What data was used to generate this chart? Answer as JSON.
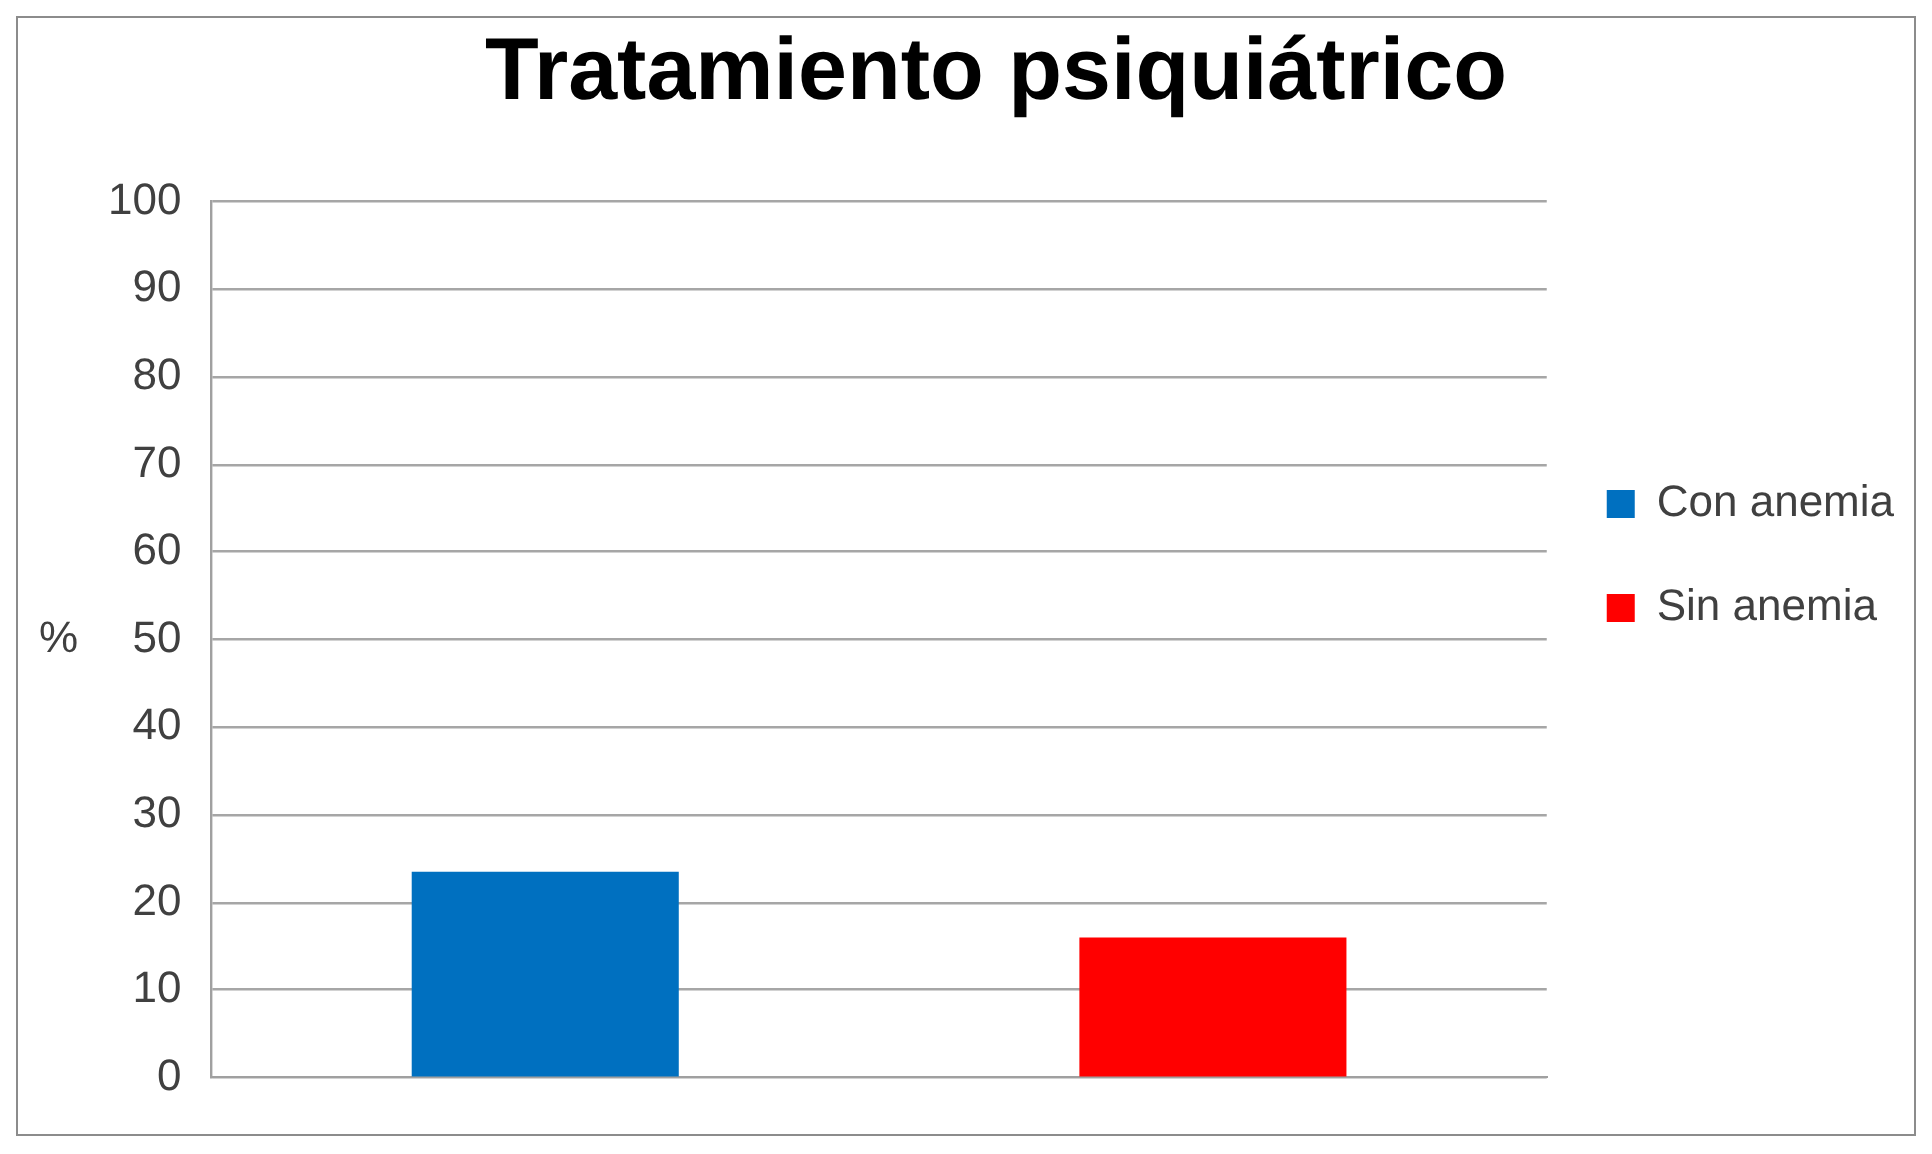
{
  "chart_data": {
    "type": "bar",
    "title": "Tratamiento psiquiátrico",
    "ylabel": "%",
    "categories": [
      null
    ],
    "series": [
      {
        "name": "Con anemia",
        "color": "#0070c0",
        "values": [
          23.5
        ]
      },
      {
        "name": "Sin anemia",
        "color": "#ff0000",
        "values": [
          16
        ]
      }
    ],
    "ylim": [
      0,
      100
    ],
    "yticks": [
      0,
      10,
      20,
      30,
      40,
      50,
      60,
      70,
      80,
      90,
      100
    ],
    "grid": "y",
    "legend": "right",
    "tick_labels": "y"
  }
}
